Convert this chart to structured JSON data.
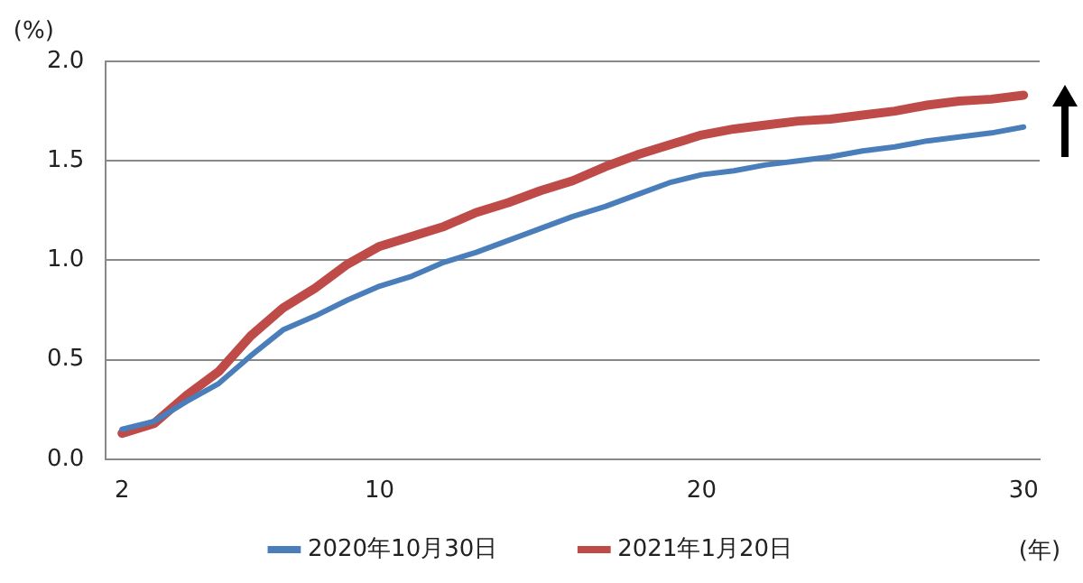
{
  "chart_data": {
    "type": "line",
    "ylabel": "(%)",
    "xlabel": "(年)",
    "x": [
      2,
      3,
      4,
      5,
      6,
      7,
      8,
      9,
      10,
      11,
      12,
      13,
      14,
      15,
      16,
      17,
      18,
      19,
      20,
      21,
      22,
      23,
      24,
      25,
      26,
      27,
      28,
      29,
      30
    ],
    "series": [
      {
        "name": "2020年10月30日",
        "color": "#4a7ebb",
        "values": [
          0.15,
          0.19,
          0.29,
          0.38,
          0.52,
          0.65,
          0.72,
          0.8,
          0.87,
          0.92,
          0.99,
          1.04,
          1.1,
          1.16,
          1.22,
          1.27,
          1.33,
          1.39,
          1.43,
          1.45,
          1.48,
          1.5,
          1.52,
          1.55,
          1.57,
          1.6,
          1.62,
          1.64,
          1.67
        ]
      },
      {
        "name": "2021年1月20日",
        "color": "#be4b48",
        "values": [
          0.13,
          0.18,
          0.32,
          0.44,
          0.62,
          0.76,
          0.86,
          0.98,
          1.07,
          1.12,
          1.17,
          1.24,
          1.29,
          1.35,
          1.4,
          1.47,
          1.53,
          1.58,
          1.63,
          1.66,
          1.68,
          1.7,
          1.71,
          1.73,
          1.75,
          1.78,
          1.8,
          1.81,
          1.83
        ]
      }
    ],
    "xlim": [
      1.5,
      30.5
    ],
    "xticks": [
      2,
      10,
      20,
      30
    ],
    "ylim": [
      0,
      2
    ],
    "yticks": [
      {
        "value": 0,
        "label": "0.0"
      },
      {
        "value": 0.5,
        "label": "0.5"
      },
      {
        "value": 1,
        "label": "1.0"
      },
      {
        "value": 1.5,
        "label": "1.5"
      },
      {
        "value": 2,
        "label": "2.0"
      }
    ],
    "grid": "y",
    "legend": "bottom",
    "marker": "none",
    "line_style": "solid"
  }
}
